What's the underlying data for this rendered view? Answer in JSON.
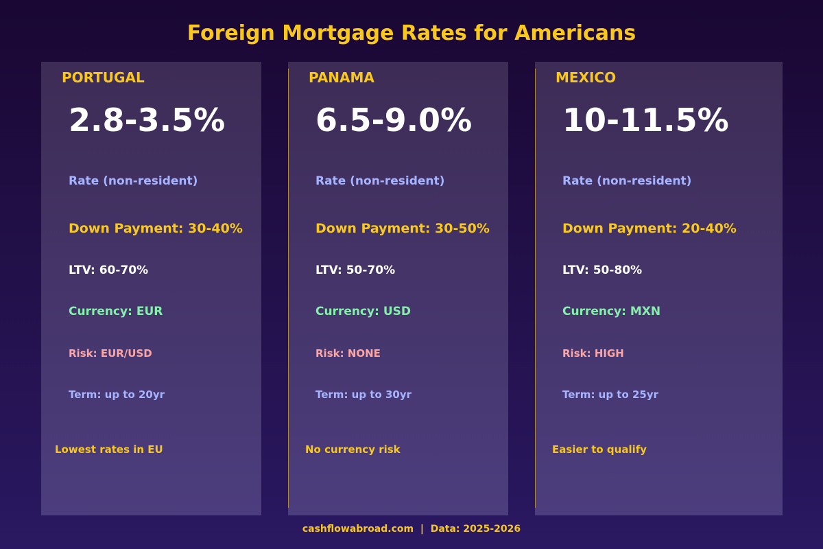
{
  "title": "Foreign Mortgage Rates for Americans",
  "cards": [
    {
      "country": "PORTUGAL",
      "rate": "2.8-3.5%",
      "rate_label": "Rate (non-resident)",
      "down_payment": "Down Payment: 30-40%",
      "ltv": "LTV: 60-70%",
      "currency": "Currency: EUR",
      "risk": "Risk: EUR/USD",
      "term": "Term: up to 20yr",
      "note": "Lowest rates in EU"
    },
    {
      "country": "PANAMA",
      "rate": "6.5-9.0%",
      "rate_label": "Rate (non-resident)",
      "down_payment": "Down Payment: 30-50%",
      "ltv": "LTV: 50-70%",
      "currency": "Currency: USD",
      "risk": "Risk: NONE",
      "term": "Term: up to 30yr",
      "note": "No currency risk"
    },
    {
      "country": "MEXICO",
      "rate": "10-11.5%",
      "rate_label": "Rate (non-resident)",
      "down_payment": "Down Payment: 20-40%",
      "ltv": "LTV: 50-80%",
      "currency": "Currency: MXN",
      "risk": "Risk: HIGH",
      "term": "Term: up to 25yr",
      "note": "Easier to qualify"
    }
  ],
  "footer": "cashflowabroad.com  |  Data: 2025-2026",
  "colors": {
    "accent": "#f8c81e",
    "rate_label": "#a6b4ff",
    "currency": "#86efac",
    "risk": "#fca5a5"
  }
}
